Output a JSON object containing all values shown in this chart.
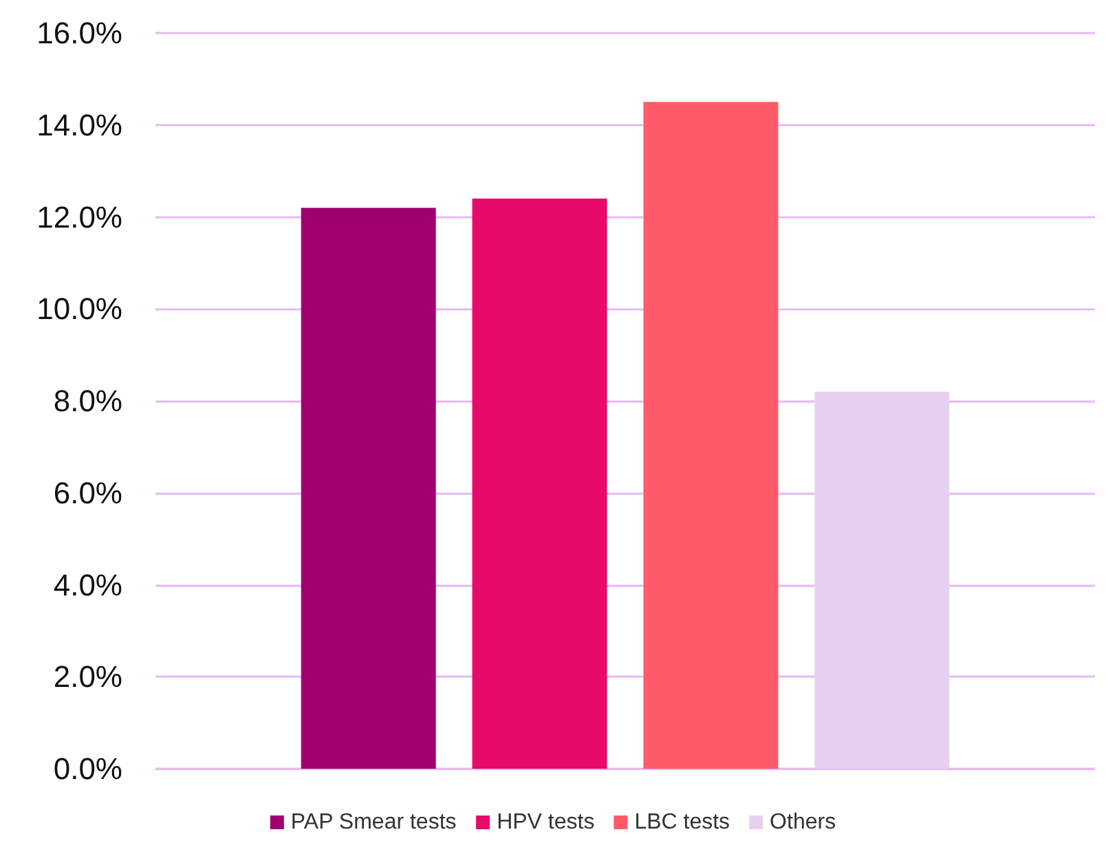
{
  "chart_data": {
    "type": "bar",
    "categories": [
      null
    ],
    "series": [
      {
        "name": "PAP Smear tests",
        "color": "#a0006e",
        "values": [
          12.2
        ]
      },
      {
        "name": "HPV tests",
        "color": "#e80a6a",
        "values": [
          12.4
        ]
      },
      {
        "name": "LBC tests",
        "color": "#ff5a6a",
        "values": [
          14.5
        ]
      },
      {
        "name": "Others",
        "color": "#e6d0f0",
        "values": [
          8.2
        ]
      }
    ],
    "ylim": [
      0,
      16
    ],
    "yticks": [
      {
        "value": 0,
        "label": "0.0%"
      },
      {
        "value": 2,
        "label": "2.0%"
      },
      {
        "value": 4,
        "label": "4.0%"
      },
      {
        "value": 6,
        "label": "6.0%"
      },
      {
        "value": 8,
        "label": "8.0%"
      },
      {
        "value": 10,
        "label": "10.0%"
      },
      {
        "value": 12,
        "label": "12.0%"
      },
      {
        "value": 14,
        "label": "14.0%"
      },
      {
        "value": 16,
        "label": "16.0%"
      }
    ],
    "grid": "y",
    "legend": "bottom"
  }
}
